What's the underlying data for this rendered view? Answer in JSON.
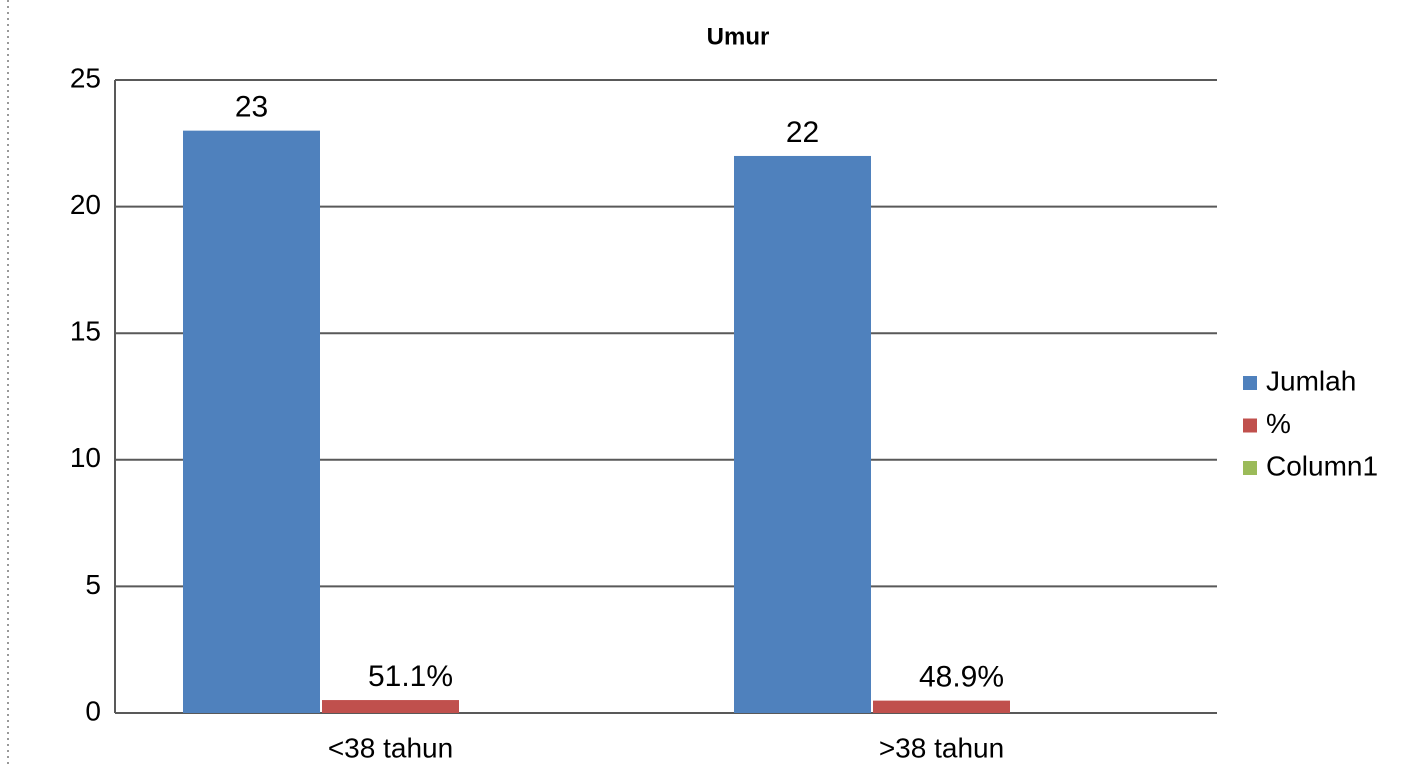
{
  "chart_data": {
    "type": "bar",
    "title": "Umur",
    "categories": [
      "<38 tahun",
      ">38 tahun"
    ],
    "series": [
      {
        "name": "Jumlah",
        "color": "#4f81bd",
        "values": [
          23,
          22
        ]
      },
      {
        "name": "%",
        "color": "#c0504d",
        "values": [
          0.511,
          0.489
        ],
        "value_labels": [
          "51.1%",
          "48.9%"
        ]
      },
      {
        "name": "Column1",
        "color": "#9bbb59",
        "values": [
          null,
          null
        ]
      }
    ],
    "ylim": [
      0,
      25
    ],
    "yticks": [
      0,
      5,
      10,
      15,
      20,
      25
    ],
    "grid": true,
    "legend": "right"
  }
}
